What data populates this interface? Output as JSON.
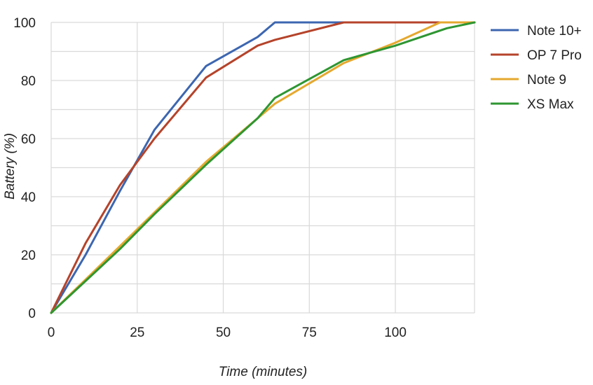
{
  "chart_data": {
    "type": "line",
    "title": "",
    "xlabel": "Time (minutes)",
    "ylabel": "Battery (%)",
    "xlim": [
      0,
      123
    ],
    "ylim": [
      0,
      100
    ],
    "x_ticks": [
      0,
      25,
      50,
      75,
      100
    ],
    "y_ticks": [
      0,
      20,
      40,
      60,
      80,
      100
    ],
    "grid": true,
    "legend_position": "right",
    "series": [
      {
        "name": "Note 10+",
        "color": "#3c66b0",
        "points": [
          [
            0,
            0
          ],
          [
            10,
            20
          ],
          [
            20,
            42
          ],
          [
            30,
            63
          ],
          [
            45,
            85
          ],
          [
            60,
            95
          ],
          [
            65,
            100
          ],
          [
            85,
            100
          ],
          [
            123,
            100
          ]
        ]
      },
      {
        "name": "OP 7 Pro",
        "color": "#b5432a",
        "points": [
          [
            0,
            0
          ],
          [
            10,
            24
          ],
          [
            20,
            44
          ],
          [
            30,
            60
          ],
          [
            45,
            81
          ],
          [
            60,
            92
          ],
          [
            65,
            94
          ],
          [
            85,
            100
          ],
          [
            123,
            100
          ]
        ]
      },
      {
        "name": "Note 9",
        "color": "#e5a82e",
        "points": [
          [
            0,
            0
          ],
          [
            20,
            23
          ],
          [
            45,
            52
          ],
          [
            60,
            67
          ],
          [
            65,
            72
          ],
          [
            85,
            86
          ],
          [
            100,
            93
          ],
          [
            113,
            100
          ],
          [
            123,
            100
          ]
        ]
      },
      {
        "name": "XS Max",
        "color": "#2e9632",
        "points": [
          [
            0,
            0
          ],
          [
            10,
            11
          ],
          [
            20,
            22
          ],
          [
            30,
            34
          ],
          [
            45,
            51
          ],
          [
            60,
            67
          ],
          [
            65,
            74
          ],
          [
            85,
            87
          ],
          [
            100,
            92
          ],
          [
            115,
            98
          ],
          [
            123,
            100
          ]
        ]
      }
    ]
  }
}
